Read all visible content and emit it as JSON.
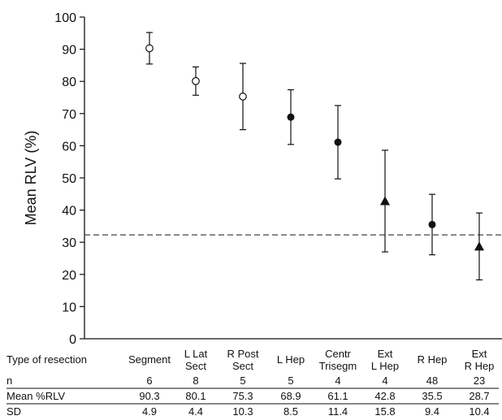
{
  "chart_data": {
    "type": "scatter",
    "ylabel": "Mean RLV (%)",
    "ylim": [
      0,
      100
    ],
    "yticks": [
      0,
      10,
      20,
      30,
      40,
      50,
      60,
      70,
      80,
      90,
      100
    ],
    "grid": false,
    "reference_line": {
      "y": 32.3,
      "style": "dashed"
    },
    "categories": [
      [
        "Segment"
      ],
      [
        "L Lat",
        "Sect"
      ],
      [
        "R Post",
        "Sect"
      ],
      [
        "L Hep"
      ],
      [
        "Centr",
        "Trisegm"
      ],
      [
        "Ext",
        "L Hep"
      ],
      [
        "R Hep"
      ],
      [
        "Ext",
        "R Hep"
      ]
    ],
    "markers": [
      "open-circle",
      "open-circle",
      "open-circle",
      "filled-circle",
      "filled-circle",
      "filled-triangle",
      "filled-circle",
      "filled-triangle"
    ],
    "values": [
      90.3,
      80.1,
      75.3,
      68.9,
      61.1,
      42.8,
      35.5,
      28.7
    ],
    "err_low": [
      85.4,
      75.7,
      65.0,
      60.4,
      49.7,
      27.0,
      26.1,
      18.3
    ],
    "err_high": [
      95.2,
      84.5,
      85.6,
      77.4,
      72.5,
      58.6,
      44.9,
      39.1
    ],
    "table": {
      "header_label": "Type of resection",
      "rows": [
        {
          "label": "n",
          "values": [
            "6",
            "8",
            "5",
            "5",
            "4",
            "4",
            "48",
            "23"
          ]
        },
        {
          "label": "Mean %RLV",
          "values": [
            "90.3",
            "80.1",
            "75.3",
            "68.9",
            "61.1",
            "42.8",
            "35.5",
            "28.7"
          ]
        },
        {
          "label": "SD",
          "values": [
            "4.9",
            "4.4",
            "10.3",
            "8.5",
            "11.4",
            "15.8",
            "9.4",
            "10.4"
          ]
        }
      ]
    }
  }
}
